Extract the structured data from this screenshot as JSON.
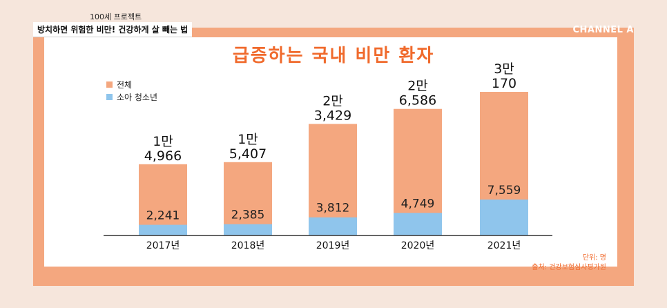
{
  "caption": {
    "program": "100세 프로젝트",
    "headline": "방치하면 위험한 비만! 건강하게 살 빼는 법"
  },
  "channel_logo": "CHANNEL A",
  "colors": {
    "total": "#f4a77f",
    "youth": "#8fc5ec",
    "accent": "#f06a2c",
    "frame": "#f4a77f"
  },
  "chart_data": {
    "type": "bar",
    "title": "급증하는 국내 비만 환자",
    "categories": [
      "2017년",
      "2018년",
      "2019년",
      "2020년",
      "2021년"
    ],
    "series": [
      {
        "name": "전체",
        "values": [
          14966,
          15407,
          23429,
          26586,
          30170
        ],
        "labels": [
          [
            "1만",
            "4,966"
          ],
          [
            "1만",
            "5,407"
          ],
          [
            "2만",
            "3,429"
          ],
          [
            "2만",
            "6,586"
          ],
          [
            "3만",
            "170"
          ]
        ]
      },
      {
        "name": "소아 청소년",
        "values": [
          2241,
          2385,
          3812,
          4749,
          7559
        ],
        "labels": [
          "2,241",
          "2,385",
          "3,812",
          "4,749",
          "7,559"
        ]
      }
    ],
    "ylim": [
      0,
      30170
    ],
    "legend_position": "top-left",
    "grid": false,
    "unit_note": "단위: 명",
    "source_note": "출처: 건강보험심사평가원"
  }
}
